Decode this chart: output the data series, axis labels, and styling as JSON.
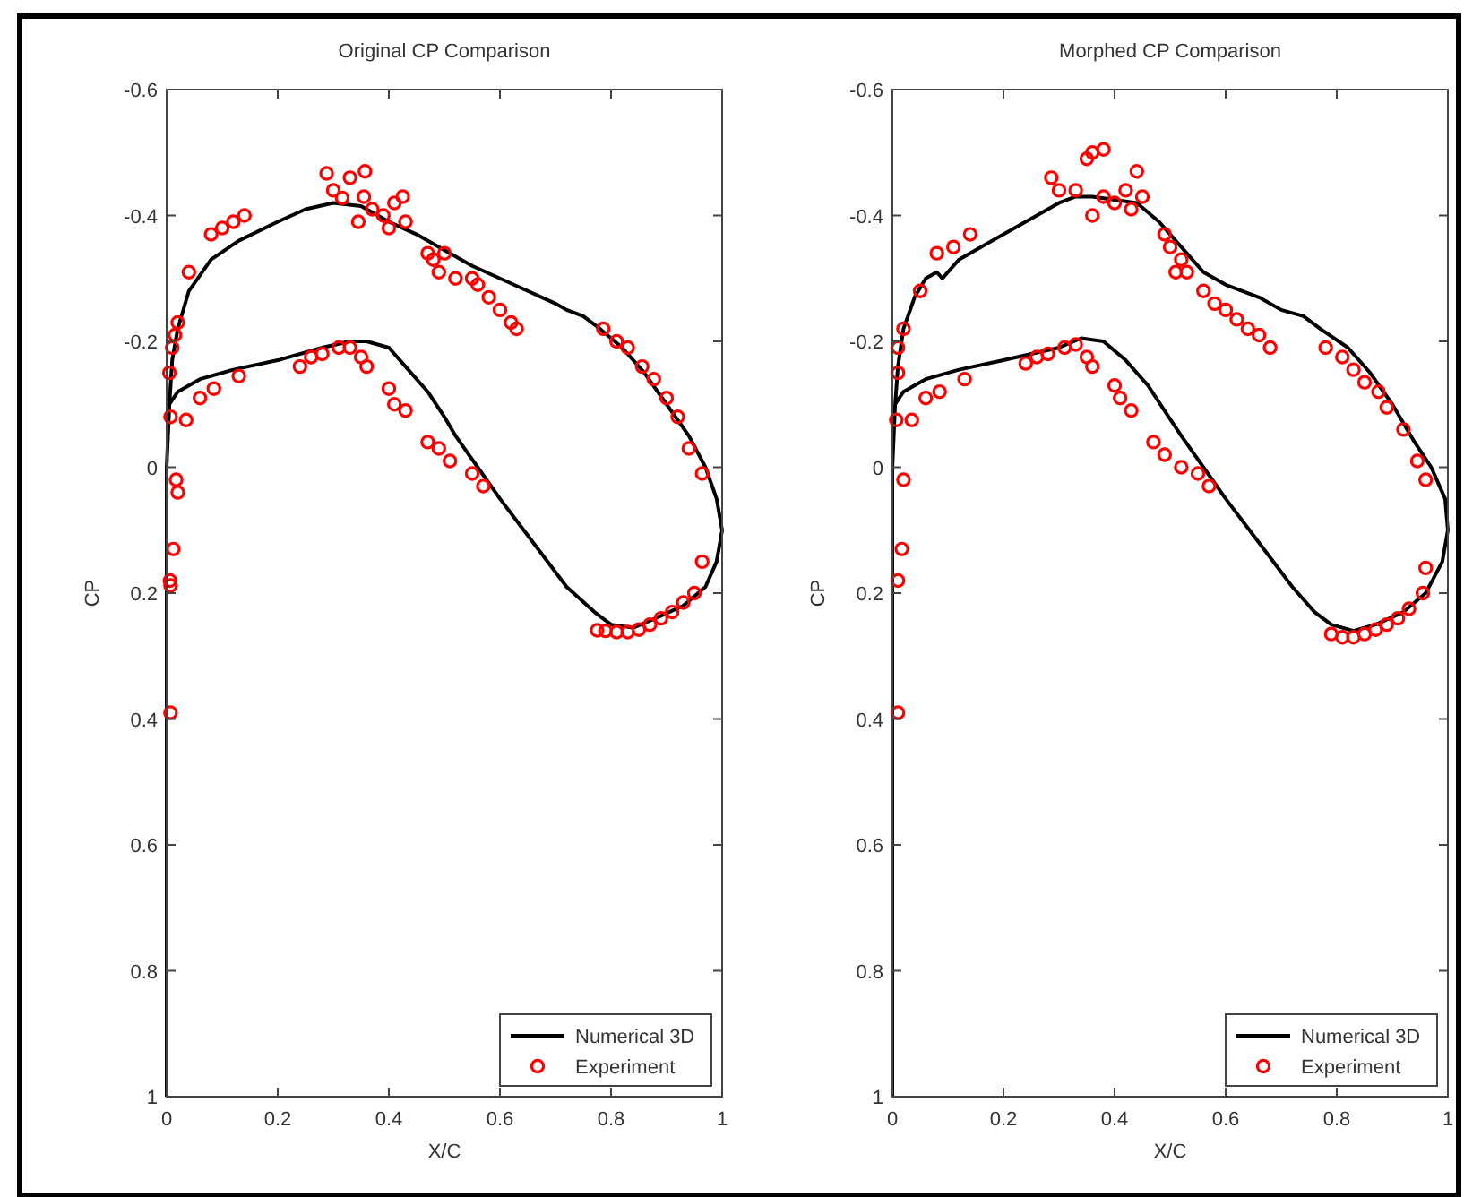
{
  "chart_data": [
    {
      "type": "line",
      "title": "Original CP Comparison",
      "xlabel": "X/C",
      "ylabel": "CP",
      "xlim": [
        0,
        1
      ],
      "xticks": [
        0,
        0.2,
        0.4,
        0.6,
        0.8,
        1
      ],
      "ylim": [
        1,
        -0.6
      ],
      "yticks": [
        -0.6,
        -0.4,
        -0.2,
        0,
        0.2,
        0.4,
        0.6,
        0.8,
        1
      ],
      "grid": false,
      "legend": "bottom right",
      "series": [
        {
          "name": "Numerical 3D",
          "color": "#000000",
          "line_style": "solid",
          "marker": "none",
          "x": [
            0,
            0,
            0.005,
            0.01,
            0.02,
            0.04,
            0.08,
            0.13,
            0.2,
            0.25,
            0.3,
            0.35,
            0.4,
            0.45,
            0.5,
            0.55,
            0.6,
            0.65,
            0.7,
            0.72,
            0.75,
            0.78,
            0.82,
            0.86,
            0.9,
            0.94,
            0.97,
            0.99,
            1,
            0.99,
            0.97,
            0.93,
            0.88,
            0.84,
            0.8,
            0.77,
            0.72,
            0.66,
            0.6,
            0.56,
            0.52,
            0.5,
            0.47,
            0.43,
            0.4,
            0.36,
            0.33,
            0.28,
            0.2,
            0.12,
            0.06,
            0.02,
            0.005
          ],
          "values": [
            1,
            0,
            -0.1,
            -0.17,
            -0.22,
            -0.28,
            -0.33,
            -0.36,
            -0.39,
            -0.41,
            -0.42,
            -0.415,
            -0.39,
            -0.37,
            -0.345,
            -0.32,
            -0.3,
            -0.28,
            -0.26,
            -0.25,
            -0.24,
            -0.22,
            -0.19,
            -0.15,
            -0.1,
            -0.05,
            0,
            0.05,
            0.1,
            0.15,
            0.19,
            0.22,
            0.24,
            0.255,
            0.25,
            0.23,
            0.19,
            0.12,
            0.05,
            0,
            -0.05,
            -0.08,
            -0.12,
            -0.16,
            -0.19,
            -0.2,
            -0.2,
            -0.19,
            -0.17,
            -0.155,
            -0.14,
            -0.12,
            -0.1
          ]
        },
        {
          "name": "Experiment",
          "type": "scatter",
          "color": "#ff0000",
          "marker": "circle",
          "x": [
            0.005,
            0.01,
            0.015,
            0.02,
            0.04,
            0.08,
            0.1,
            0.12,
            0.14,
            0.288,
            0.3,
            0.316,
            0.33,
            0.345,
            0.355,
            0.357,
            0.37,
            0.39,
            0.4,
            0.41,
            0.425,
            0.43,
            0.47,
            0.48,
            0.49,
            0.5,
            0.52,
            0.55,
            0.56,
            0.58,
            0.6,
            0.62,
            0.63,
            0.786,
            0.81,
            0.83,
            0.856,
            0.877,
            0.9,
            0.92,
            0.94,
            0.964,
            0.964,
            0.95,
            0.93,
            0.91,
            0.89,
            0.87,
            0.85,
            0.83,
            0.81,
            0.79,
            0.775,
            0.007,
            0.035,
            0.06,
            0.085,
            0.13,
            0.24,
            0.26,
            0.28,
            0.31,
            0.33,
            0.35,
            0.36,
            0.4,
            0.41,
            0.43,
            0.47,
            0.49,
            0.51,
            0.55,
            0.57,
            0.017,
            0.02,
            0.012,
            0.006,
            0.007,
            0.007
          ],
          "values": [
            -0.15,
            -0.19,
            -0.21,
            -0.23,
            -0.31,
            -0.37,
            -0.38,
            -0.39,
            -0.4,
            -0.467,
            -0.44,
            -0.428,
            -0.46,
            -0.39,
            -0.43,
            -0.47,
            -0.41,
            -0.4,
            -0.38,
            -0.42,
            -0.43,
            -0.39,
            -0.34,
            -0.33,
            -0.31,
            -0.34,
            -0.3,
            -0.3,
            -0.29,
            -0.27,
            -0.25,
            -0.23,
            -0.22,
            -0.22,
            -0.2,
            -0.19,
            -0.16,
            -0.14,
            -0.11,
            -0.08,
            -0.03,
            0.01,
            0.15,
            0.2,
            0.215,
            0.23,
            0.24,
            0.25,
            0.258,
            0.262,
            0.262,
            0.26,
            0.259,
            -0.08,
            -0.075,
            -0.11,
            -0.125,
            -0.145,
            -0.16,
            -0.175,
            -0.18,
            -0.19,
            -0.19,
            -0.175,
            -0.16,
            -0.125,
            -0.1,
            -0.09,
            -0.04,
            -0.03,
            -0.01,
            0.01,
            0.03,
            0.02,
            0.04,
            0.13,
            0.18,
            0.188,
            0.39
          ]
        }
      ]
    },
    {
      "type": "line",
      "title": "Morphed CP Comparison",
      "xlabel": "X/C",
      "ylabel": "CP",
      "xlim": [
        0,
        1
      ],
      "xticks": [
        0,
        0.2,
        0.4,
        0.6,
        0.8,
        1
      ],
      "ylim": [
        1,
        -0.6
      ],
      "yticks": [
        -0.6,
        -0.4,
        -0.2,
        0,
        0.2,
        0.4,
        0.6,
        0.8,
        1
      ],
      "grid": false,
      "legend": "bottom right",
      "series": [
        {
          "name": "Numerical 3D",
          "color": "#000000",
          "line_style": "solid",
          "marker": "none",
          "x": [
            0,
            0,
            0.005,
            0.01,
            0.02,
            0.04,
            0.06,
            0.08,
            0.09,
            0.12,
            0.18,
            0.22,
            0.26,
            0.3,
            0.33,
            0.36,
            0.4,
            0.44,
            0.48,
            0.52,
            0.56,
            0.6,
            0.66,
            0.7,
            0.74,
            0.77,
            0.82,
            0.86,
            0.9,
            0.94,
            0.97,
            0.995,
            1,
            0.99,
            0.96,
            0.92,
            0.87,
            0.83,
            0.79,
            0.76,
            0.72,
            0.66,
            0.6,
            0.56,
            0.52,
            0.49,
            0.46,
            0.42,
            0.38,
            0.34,
            0.3,
            0.2,
            0.12,
            0.06,
            0.02,
            0.005
          ],
          "values": [
            1,
            0,
            -0.1,
            -0.16,
            -0.22,
            -0.27,
            -0.3,
            -0.31,
            -0.3,
            -0.33,
            -0.36,
            -0.38,
            -0.4,
            -0.42,
            -0.43,
            -0.43,
            -0.425,
            -0.42,
            -0.39,
            -0.35,
            -0.31,
            -0.29,
            -0.27,
            -0.25,
            -0.24,
            -0.22,
            -0.19,
            -0.15,
            -0.1,
            -0.04,
            0,
            0.05,
            0.1,
            0.15,
            0.2,
            0.23,
            0.25,
            0.26,
            0.25,
            0.23,
            0.19,
            0.12,
            0.05,
            0,
            -0.05,
            -0.09,
            -0.13,
            -0.17,
            -0.2,
            -0.205,
            -0.19,
            -0.17,
            -0.155,
            -0.14,
            -0.12,
            -0.1
          ]
        },
        {
          "name": "Experiment",
          "type": "scatter",
          "color": "#ff0000",
          "marker": "circle",
          "x": [
            0.01,
            0.01,
            0.02,
            0.05,
            0.08,
            0.11,
            0.14,
            0.286,
            0.3,
            0.33,
            0.35,
            0.36,
            0.38,
            0.36,
            0.38,
            0.4,
            0.42,
            0.43,
            0.44,
            0.45,
            0.49,
            0.5,
            0.52,
            0.53,
            0.51,
            0.56,
            0.58,
            0.6,
            0.62,
            0.64,
            0.66,
            0.68,
            0.78,
            0.81,
            0.83,
            0.85,
            0.875,
            0.89,
            0.92,
            0.945,
            0.96,
            0.96,
            0.955,
            0.93,
            0.91,
            0.89,
            0.87,
            0.85,
            0.83,
            0.81,
            0.79,
            0.007,
            0.035,
            0.06,
            0.085,
            0.13,
            0.24,
            0.26,
            0.28,
            0.31,
            0.33,
            0.35,
            0.36,
            0.4,
            0.41,
            0.43,
            0.47,
            0.49,
            0.52,
            0.55,
            0.57,
            0.02,
            0.017,
            0.01,
            0.01
          ],
          "values": [
            -0.15,
            -0.19,
            -0.22,
            -0.28,
            -0.34,
            -0.35,
            -0.37,
            -0.46,
            -0.44,
            -0.44,
            -0.49,
            -0.5,
            -0.505,
            -0.4,
            -0.43,
            -0.42,
            -0.44,
            -0.41,
            -0.47,
            -0.43,
            -0.37,
            -0.35,
            -0.33,
            -0.31,
            -0.31,
            -0.28,
            -0.26,
            -0.25,
            -0.235,
            -0.22,
            -0.21,
            -0.19,
            -0.19,
            -0.175,
            -0.155,
            -0.135,
            -0.12,
            -0.095,
            -0.06,
            -0.01,
            0.02,
            0.16,
            0.2,
            0.225,
            0.24,
            0.25,
            0.258,
            0.265,
            0.27,
            0.27,
            0.265,
            -0.075,
            -0.075,
            -0.11,
            -0.12,
            -0.14,
            -0.165,
            -0.175,
            -0.18,
            -0.19,
            -0.195,
            -0.175,
            -0.16,
            -0.13,
            -0.11,
            -0.09,
            -0.04,
            -0.02,
            0,
            0.01,
            0.03,
            0.02,
            0.13,
            0.18,
            0.39
          ]
        }
      ]
    }
  ]
}
